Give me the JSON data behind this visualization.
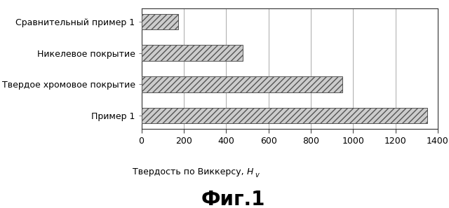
{
  "categories": [
    "Пример 1",
    "Твердое хромовое покрытие",
    "Никелевое покрытие",
    "Сравнительный пример 1"
  ],
  "values": [
    1350,
    950,
    480,
    175
  ],
  "xlabel_main": "Твердость по Виккерсу, ",
  "xlabel_italic": "H",
  "xlabel_sub": "v",
  "title": "Фиг.1",
  "xlim": [
    0,
    1400
  ],
  "xticks": [
    0,
    200,
    400,
    600,
    800,
    1000,
    1200,
    1400
  ],
  "hatch": "////",
  "bar_facecolor": "#cccccc",
  "bar_edgecolor": "#555555",
  "grid_color": "#888888",
  "background_color": "#ffffff",
  "bar_height": 0.5,
  "title_fontsize": 20,
  "tick_fontsize": 9,
  "label_fontsize": 9,
  "ytick_fontsize": 9
}
